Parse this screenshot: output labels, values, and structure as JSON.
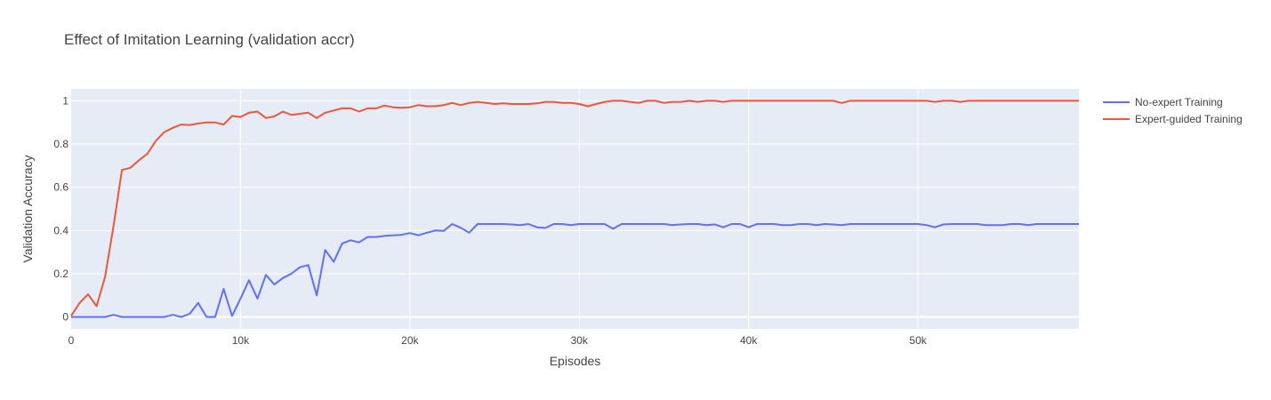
{
  "chart_data": {
    "type": "line",
    "title": "Effect of Imitation Learning (validation accr)",
    "xlabel": "Episodes",
    "ylabel": "Validation Accuracy",
    "xlim": [
      0,
      59500
    ],
    "ylim": [
      -0.055,
      1.055
    ],
    "x_ticks": [
      0,
      10000,
      20000,
      30000,
      40000,
      50000
    ],
    "x_tick_labels": [
      "0",
      "10k",
      "20k",
      "30k",
      "40k",
      "50k"
    ],
    "y_ticks": [
      0,
      0.2,
      0.4,
      0.6,
      0.8,
      1
    ],
    "y_tick_labels": [
      "0",
      "0.2",
      "0.4",
      "0.6",
      "0.8",
      "1"
    ],
    "grid": true,
    "legend_position": "top-right",
    "background_color": "#e5ecf6",
    "series": [
      {
        "name": "No-expert Training",
        "color": "#636efa",
        "x": [
          0,
          500,
          1000,
          1500,
          2000,
          2500,
          3000,
          3500,
          4000,
          4500,
          5000,
          5500,
          6000,
          6500,
          7000,
          7500,
          8000,
          8500,
          9000,
          9500,
          10000,
          10500,
          11000,
          11500,
          12000,
          12500,
          13000,
          13500,
          14000,
          14500,
          15000,
          15500,
          16000,
          16500,
          17000,
          17500,
          18000,
          18500,
          19000,
          19500,
          20000,
          20500,
          21000,
          21500,
          22000,
          22500,
          23000,
          23500,
          24000,
          24500,
          25000,
          25500,
          26000,
          26500,
          27000,
          27500,
          28000,
          28500,
          29000,
          29500,
          30000,
          30500,
          31000,
          31500,
          32000,
          32500,
          33000,
          33500,
          34000,
          34500,
          35000,
          35500,
          36000,
          36500,
          37000,
          37500,
          38000,
          38500,
          39000,
          39500,
          40000,
          40500,
          41000,
          41500,
          42000,
          42500,
          43000,
          43500,
          44000,
          44500,
          45000,
          45500,
          46000,
          46500,
          47000,
          47500,
          48000,
          48500,
          49000,
          49500,
          50000,
          50500,
          51000,
          51500,
          52000,
          52500,
          53000,
          53500,
          54000,
          54500,
          55000,
          55500,
          56000,
          56500,
          57000,
          57500,
          58000,
          58500,
          59000,
          59500
        ],
        "values": [
          0,
          0,
          0,
          0,
          0,
          0.01,
          0,
          0,
          0,
          0,
          0,
          0,
          0.01,
          0,
          0.015,
          0.065,
          0,
          0,
          0.13,
          0.005,
          0.085,
          0.17,
          0.085,
          0.195,
          0.15,
          0.18,
          0.2,
          0.23,
          0.24,
          0.1,
          0.31,
          0.255,
          0.34,
          0.355,
          0.345,
          0.37,
          0.37,
          0.375,
          0.378,
          0.38,
          0.388,
          0.378,
          0.39,
          0.4,
          0.398,
          0.43,
          0.413,
          0.39,
          0.43,
          0.43,
          0.43,
          0.43,
          0.428,
          0.425,
          0.43,
          0.415,
          0.412,
          0.43,
          0.43,
          0.425,
          0.43,
          0.43,
          0.43,
          0.43,
          0.408,
          0.43,
          0.43,
          0.43,
          0.43,
          0.43,
          0.43,
          0.425,
          0.428,
          0.43,
          0.43,
          0.425,
          0.428,
          0.415,
          0.43,
          0.43,
          0.415,
          0.43,
          0.43,
          0.43,
          0.425,
          0.425,
          0.43,
          0.43,
          0.425,
          0.43,
          0.428,
          0.425,
          0.43,
          0.43,
          0.43,
          0.43,
          0.43,
          0.43,
          0.43,
          0.43,
          0.43,
          0.425,
          0.415,
          0.428,
          0.43,
          0.43,
          0.43,
          0.43,
          0.425,
          0.425,
          0.425,
          0.43,
          0.43,
          0.425,
          0.43,
          0.43,
          0.43,
          0.43,
          0.43,
          0.43
        ]
      },
      {
        "name": "Expert-guided Training",
        "color": "#ef553b",
        "x": [
          0,
          500,
          1000,
          1500,
          2000,
          2500,
          3000,
          3500,
          4000,
          4500,
          5000,
          5500,
          6000,
          6500,
          7000,
          7500,
          8000,
          8500,
          9000,
          9500,
          10000,
          10500,
          11000,
          11500,
          12000,
          12500,
          13000,
          13500,
          14000,
          14500,
          15000,
          15500,
          16000,
          16500,
          17000,
          17500,
          18000,
          18500,
          19000,
          19500,
          20000,
          20500,
          21000,
          21500,
          22000,
          22500,
          23000,
          23500,
          24000,
          24500,
          25000,
          25500,
          26000,
          26500,
          27000,
          27500,
          28000,
          28500,
          29000,
          29500,
          30000,
          30500,
          31000,
          31500,
          32000,
          32500,
          33000,
          33500,
          34000,
          34500,
          35000,
          35500,
          36000,
          36500,
          37000,
          37500,
          38000,
          38500,
          39000,
          39500,
          40000,
          40500,
          41000,
          41500,
          42000,
          42500,
          43000,
          43500,
          44000,
          44500,
          45000,
          45500,
          46000,
          46500,
          47000,
          47500,
          48000,
          48500,
          49000,
          49500,
          50000,
          50500,
          51000,
          51500,
          52000,
          52500,
          53000,
          53500,
          54000,
          54500,
          55000,
          55500,
          56000,
          56500,
          57000,
          57500,
          58000,
          58500,
          59000,
          59500
        ],
        "values": [
          0.005,
          0.065,
          0.105,
          0.05,
          0.185,
          0.42,
          0.68,
          0.69,
          0.725,
          0.755,
          0.815,
          0.855,
          0.875,
          0.89,
          0.888,
          0.895,
          0.9,
          0.9,
          0.89,
          0.93,
          0.925,
          0.945,
          0.95,
          0.92,
          0.928,
          0.95,
          0.935,
          0.94,
          0.945,
          0.92,
          0.945,
          0.955,
          0.965,
          0.965,
          0.95,
          0.965,
          0.965,
          0.978,
          0.97,
          0.968,
          0.97,
          0.98,
          0.975,
          0.975,
          0.98,
          0.99,
          0.98,
          0.99,
          0.995,
          0.99,
          0.985,
          0.988,
          0.985,
          0.985,
          0.985,
          0.988,
          0.995,
          0.995,
          0.99,
          0.99,
          0.985,
          0.975,
          0.985,
          0.995,
          1.0,
          1.0,
          0.995,
          0.99,
          1.0,
          1.0,
          0.99,
          0.995,
          0.995,
          1.0,
          0.995,
          1.0,
          1.0,
          0.995,
          1.0,
          1.0,
          1.0,
          1.0,
          1.0,
          1.0,
          1.0,
          1.0,
          1.0,
          1.0,
          1.0,
          1.0,
          1.0,
          0.99,
          1.0,
          1.0,
          1.0,
          1.0,
          1.0,
          1.0,
          1.0,
          1.0,
          1.0,
          1.0,
          0.995,
          1.0,
          1.0,
          0.995,
          1.0,
          1.0,
          1.0,
          1.0,
          1.0,
          1.0,
          1.0,
          1.0,
          1.0,
          1.0,
          1.0,
          1.0,
          1.0,
          1.0
        ]
      }
    ]
  }
}
